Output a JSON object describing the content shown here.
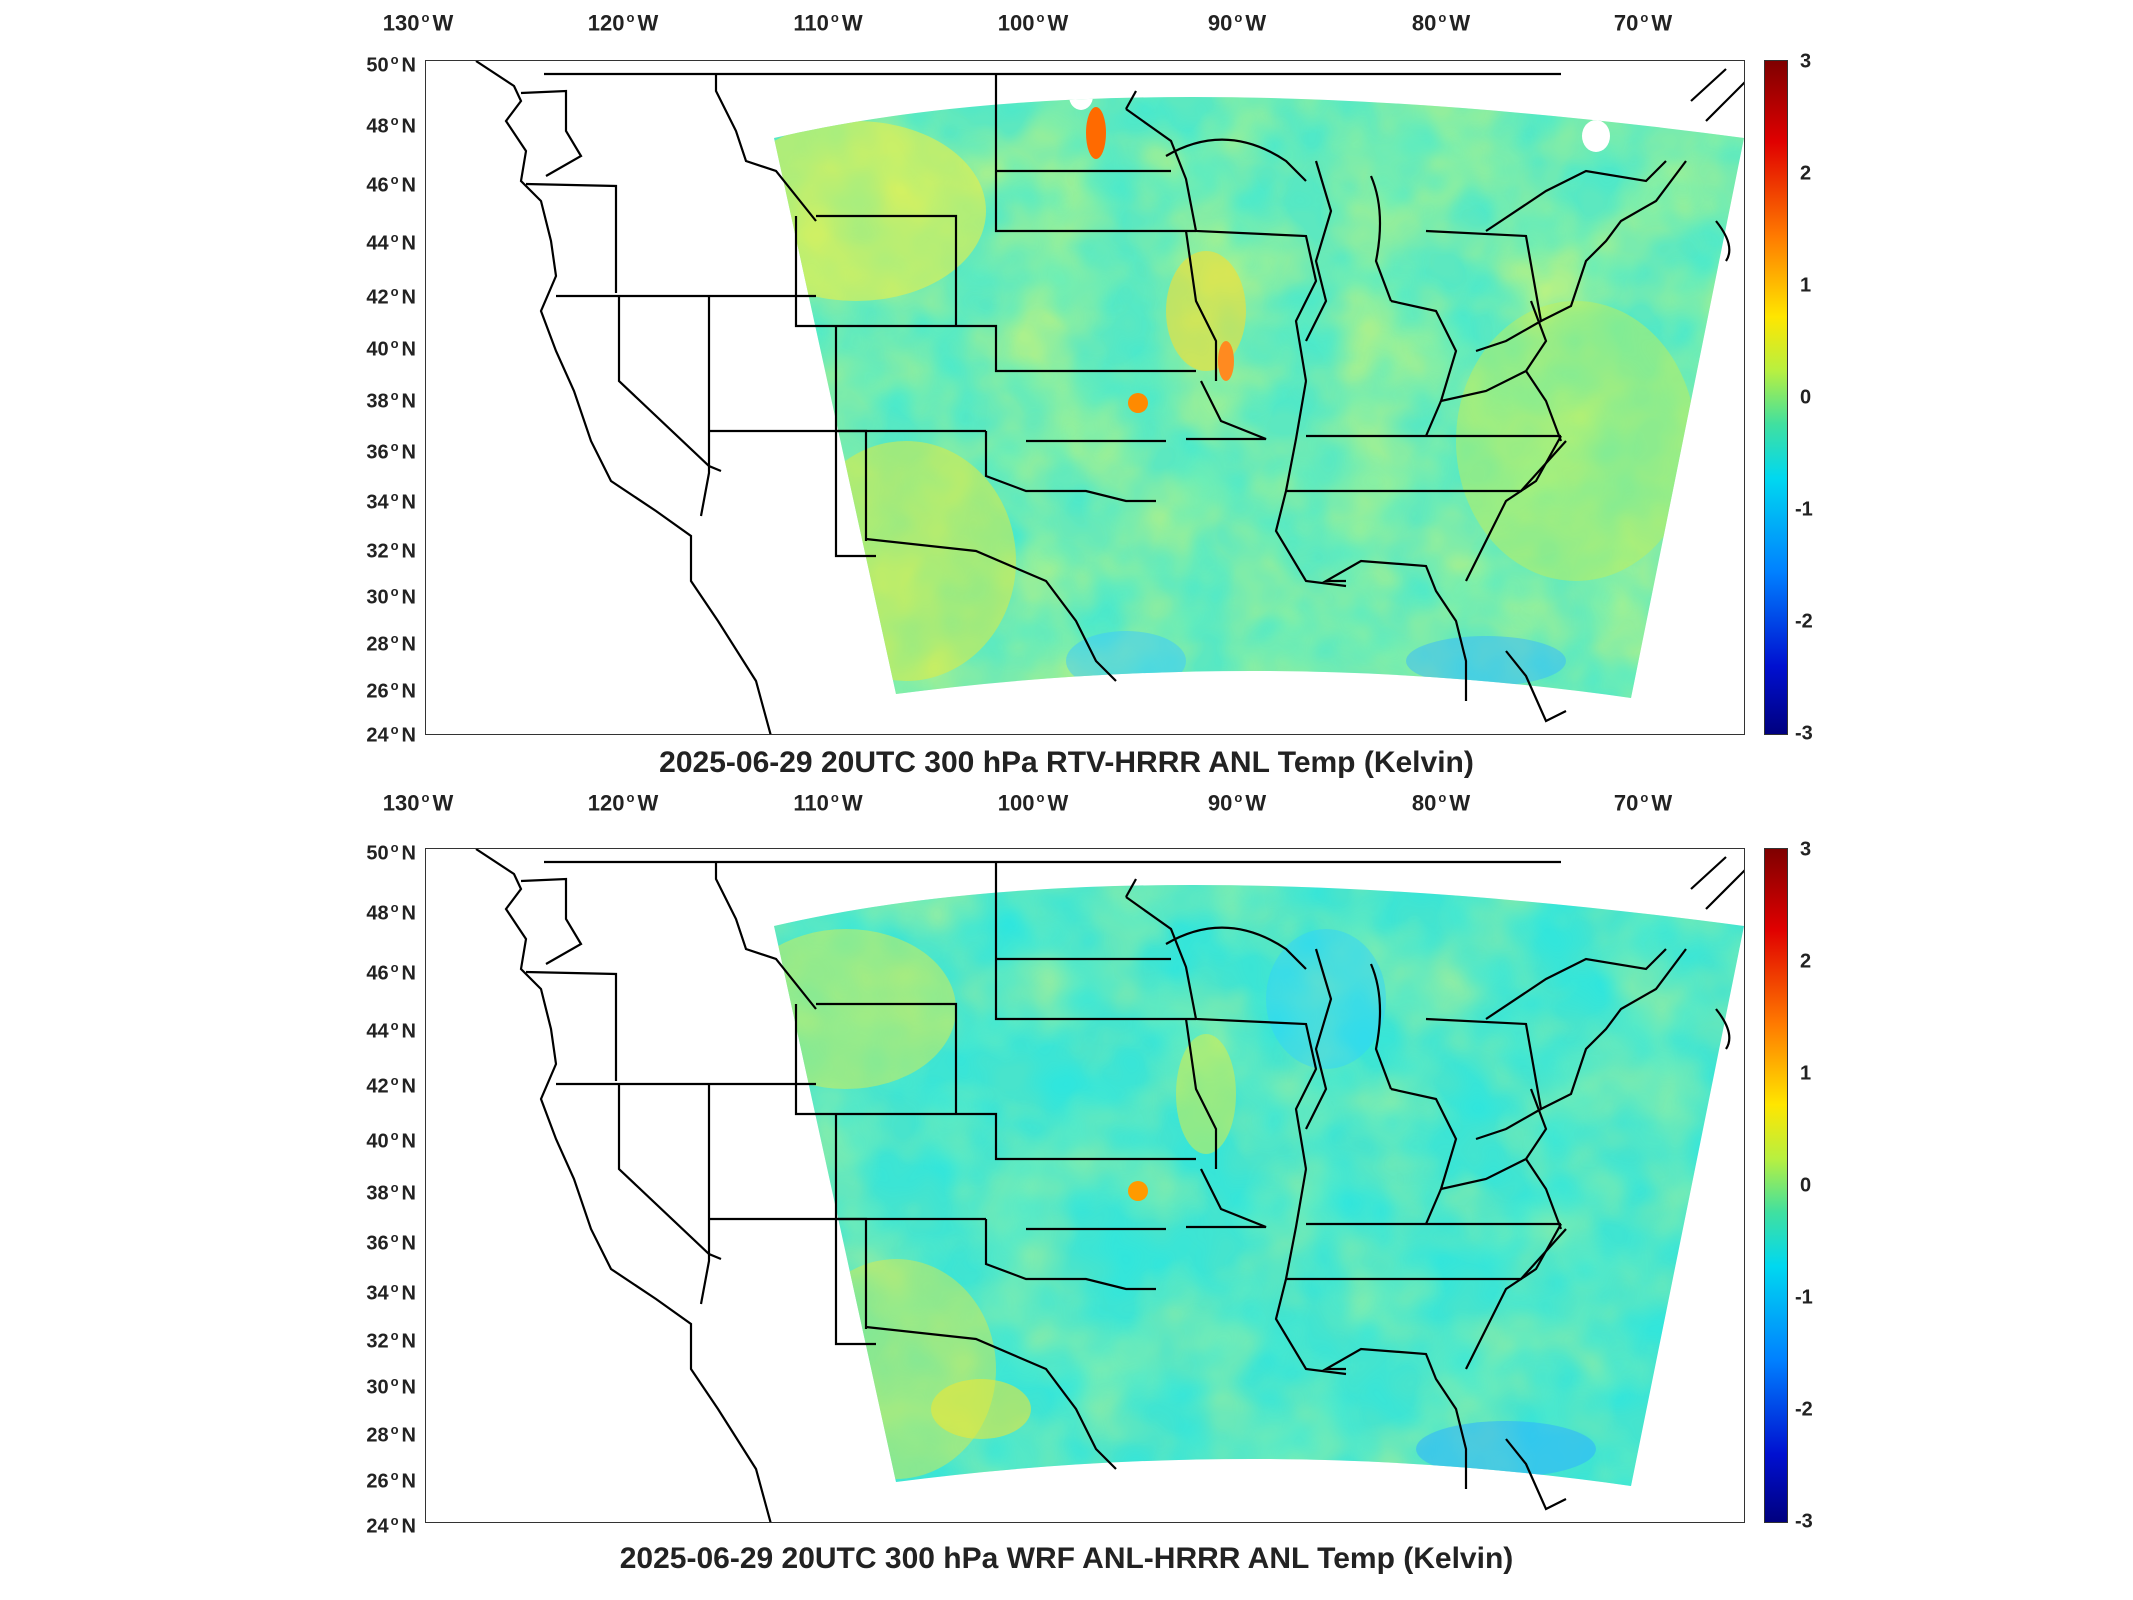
{
  "panels": [
    {
      "id": "top",
      "title": "2025-06-29 20UTC 300 hPa RTV-HRRR ANL Temp (Kelvin)",
      "longitude_labels": [
        "130",
        "120",
        "110",
        "100",
        "90",
        "80",
        "70"
      ],
      "latitude_labels": [
        "50",
        "48",
        "46",
        "44",
        "42",
        "40",
        "38",
        "36",
        "34",
        "32",
        "30",
        "28",
        "26",
        "24"
      ],
      "lon_suffix": "W",
      "lat_suffix": "N",
      "colorbar_ticks": [
        "3",
        "2",
        "1",
        "0",
        "-1",
        "-2",
        "-3"
      ]
    },
    {
      "id": "bottom",
      "title": "2025-06-29 20UTC 300 hPa WRF ANL-HRRR ANL Temp (Kelvin)",
      "longitude_labels": [
        "130",
        "120",
        "110",
        "100",
        "90",
        "80",
        "70"
      ],
      "latitude_labels": [
        "50",
        "48",
        "46",
        "44",
        "42",
        "40",
        "38",
        "36",
        "34",
        "32",
        "30",
        "28",
        "26",
        "24"
      ],
      "lon_suffix": "W",
      "lat_suffix": "N",
      "colorbar_ticks": [
        "3",
        "2",
        "1",
        "0",
        "-1",
        "-2",
        "-3"
      ]
    }
  ],
  "colorbar": {
    "min": -3,
    "max": 3,
    "colormap": "jet",
    "colors": [
      "#00007f",
      "#0010d0",
      "#0080ff",
      "#00d8f0",
      "#40e0a0",
      "#b8f040",
      "#ffe600",
      "#ff7a00",
      "#e00000",
      "#7f0000"
    ]
  },
  "map": {
    "projection": "Lambert conformal",
    "lon_range": [
      -130,
      -66
    ],
    "lat_range": [
      24,
      50
    ],
    "field_fill_dominant_top": "#5ce8c0",
    "field_fill_dominant_bottom": "#48e4cc",
    "boundary_color": "#000000"
  }
}
